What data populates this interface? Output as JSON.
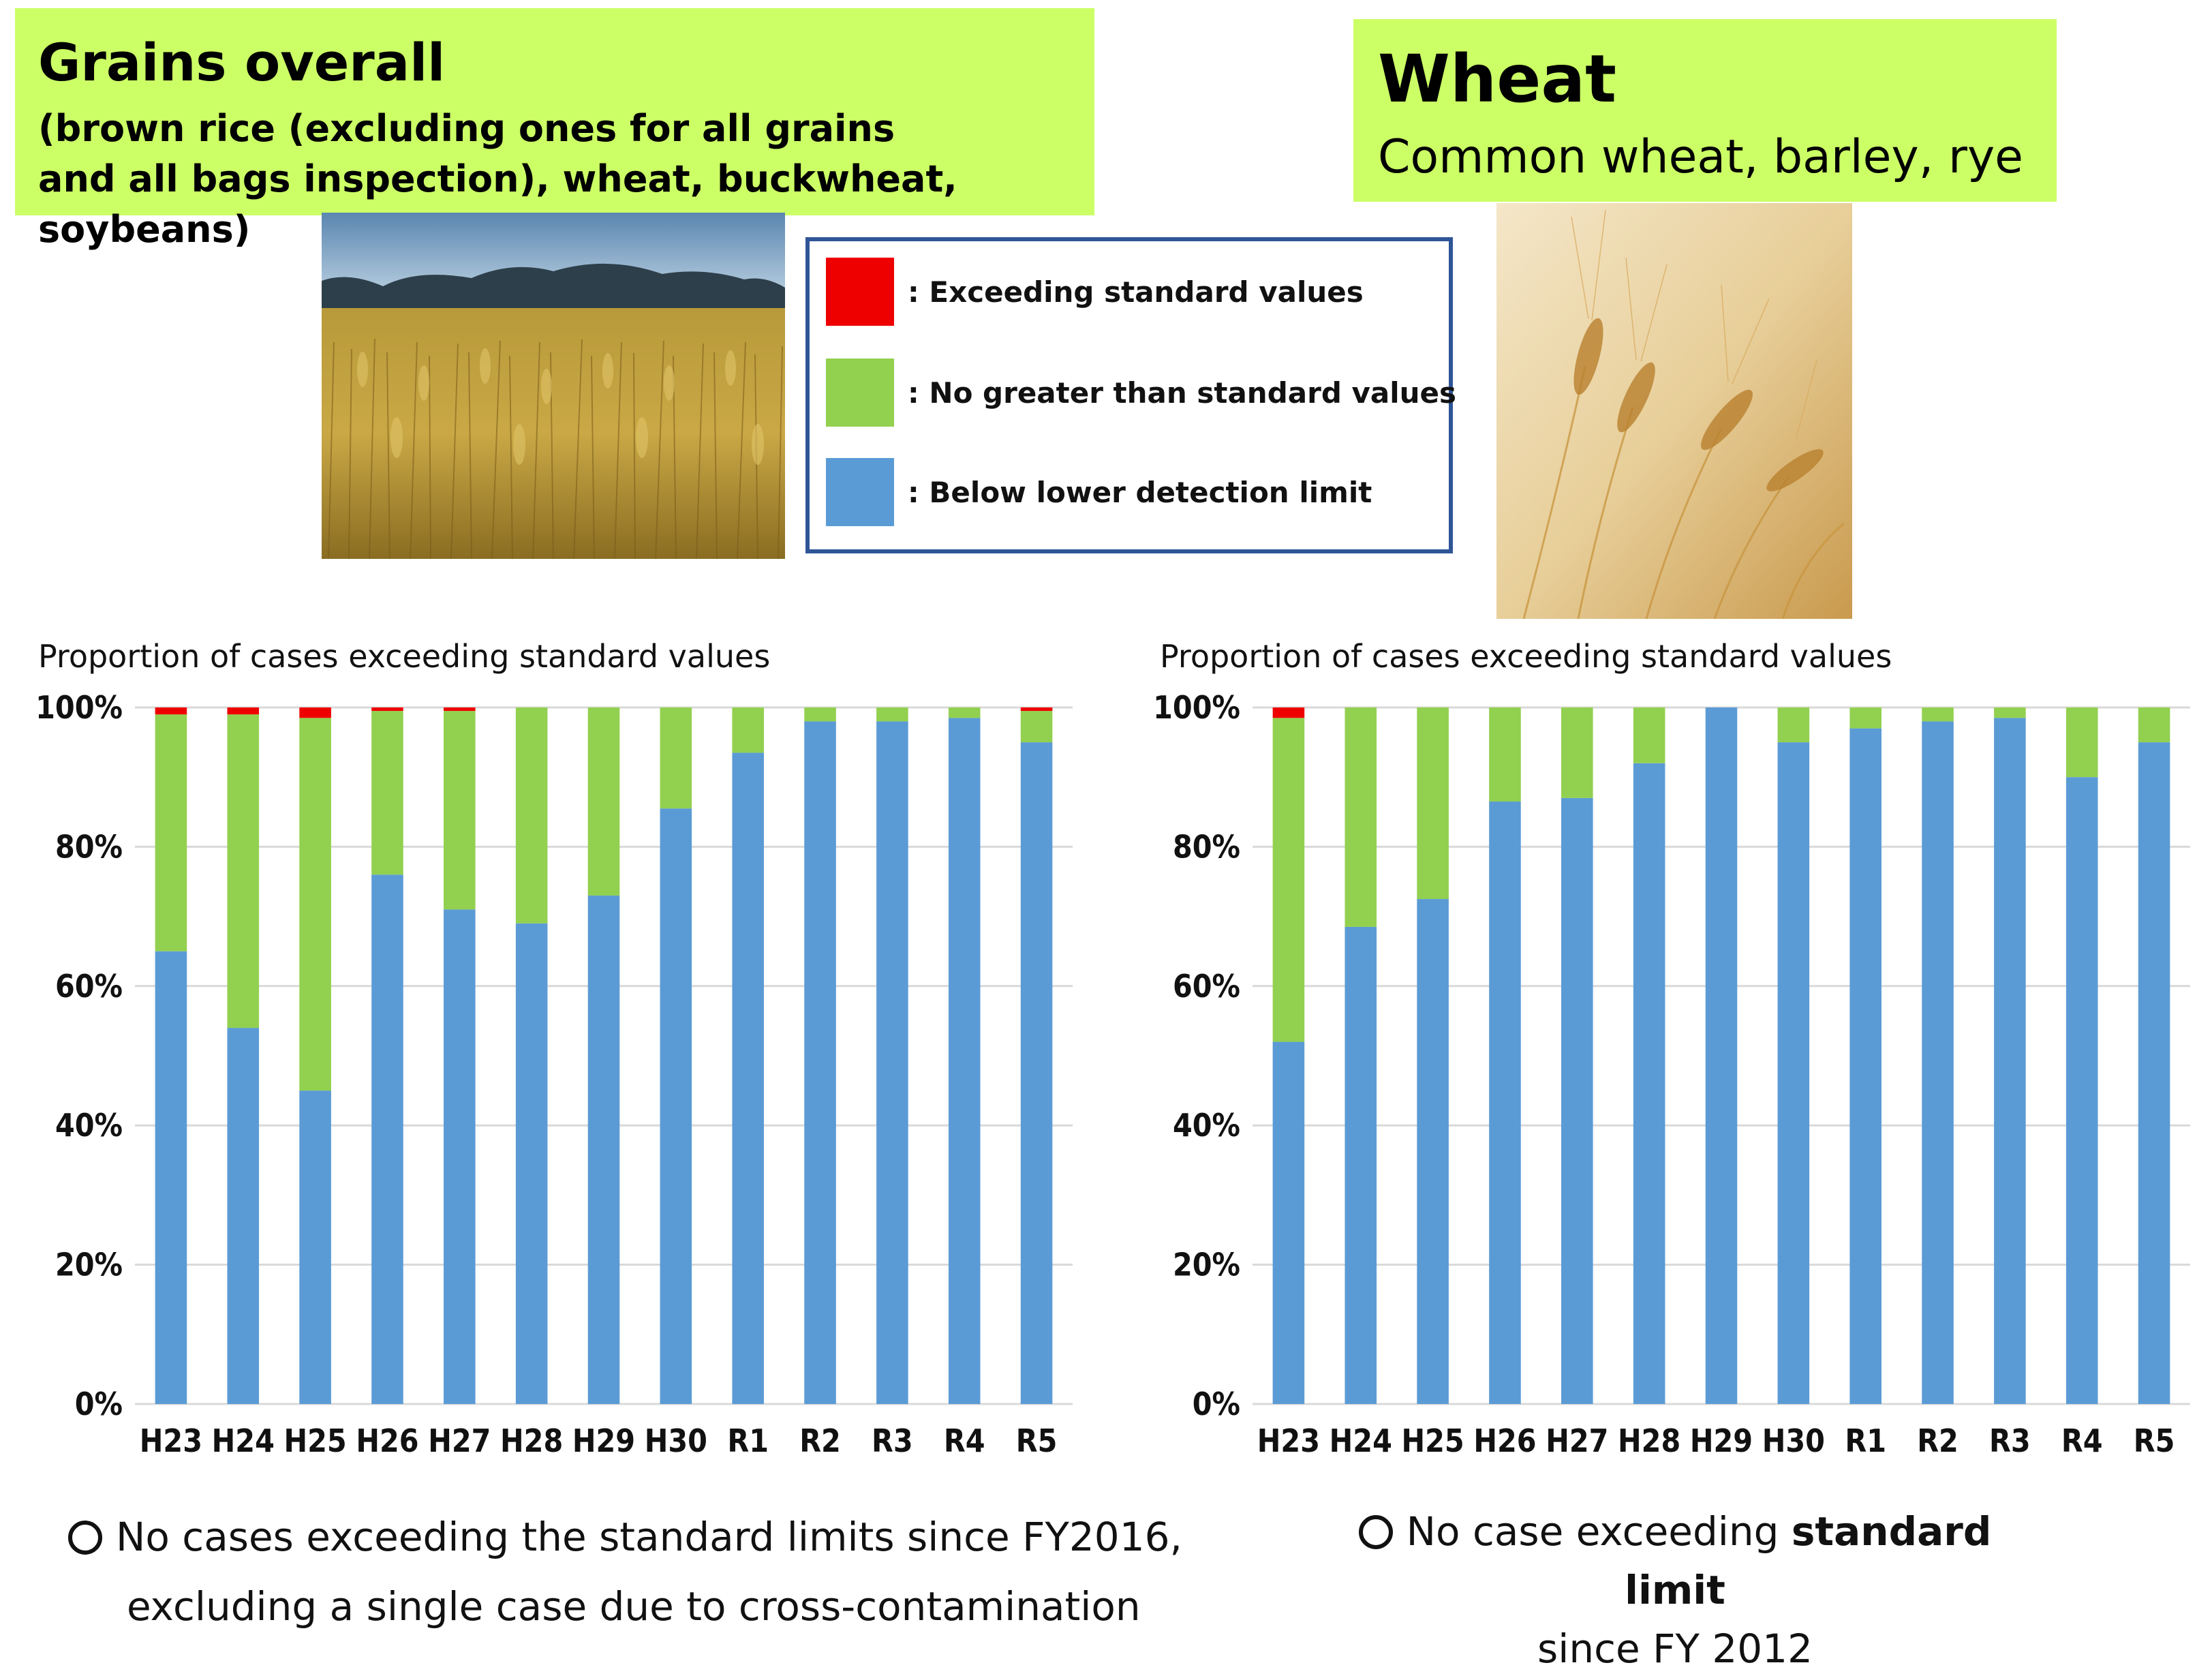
{
  "left_panel": {
    "title": "Grains overall",
    "subtitle_line1": "(brown rice (excluding ones for all grains",
    "subtitle_line2": "and all bags inspection), wheat, buckwheat, soybeans)",
    "note_line1": "No cases exceeding the standard limits since FY2016,",
    "note_line2": "excluding a single case due to cross-contamination"
  },
  "right_panel": {
    "title": "Wheat",
    "subtitle": "Common wheat, barley, rye",
    "note_prefix": "No case exceeding ",
    "note_bold": "standard limit",
    "note_line2": "since FY 2012"
  },
  "legend": {
    "items": [
      {
        "label": ": Exceeding standard values",
        "color": "#ee0000"
      },
      {
        "label": ": No greater than standard values",
        "color": "#92d050"
      },
      {
        "label": ": Below lower detection limit",
        "color": "#5b9bd5"
      }
    ]
  },
  "colors": {
    "exceeding": "#ee0000",
    "no_greater": "#92d050",
    "below": "#5b9bd5",
    "grid": "#d9d9d9"
  },
  "chart_data": [
    {
      "type": "bar",
      "stacked": true,
      "title": "Proportion of cases exceeding standard values",
      "categories": [
        "H23",
        "H24",
        "H25",
        "H26",
        "H27",
        "H28",
        "H29",
        "H30",
        "R1",
        "R2",
        "R3",
        "R4",
        "R5"
      ],
      "ylim": [
        0,
        100
      ],
      "yticks": [
        "0%",
        "20%",
        "40%",
        "60%",
        "80%",
        "100%"
      ],
      "series": [
        {
          "name": "Below lower detection limit",
          "values": [
            65,
            54,
            45,
            76,
            71,
            69,
            73,
            85.5,
            93.5,
            98,
            98,
            98.5,
            95
          ]
        },
        {
          "name": "No greater than standard values",
          "values": [
            34,
            45,
            53.5,
            23.5,
            28.5,
            31,
            27,
            14.5,
            6.5,
            2,
            2,
            1.5,
            4.5
          ]
        },
        {
          "name": "Exceeding standard values",
          "values": [
            1,
            1,
            1.5,
            0.5,
            0.5,
            0,
            0,
            0,
            0,
            0,
            0,
            0,
            0.5
          ]
        }
      ]
    },
    {
      "type": "bar",
      "stacked": true,
      "title": "Proportion of cases exceeding standard values",
      "categories": [
        "H23",
        "H24",
        "H25",
        "H26",
        "H27",
        "H28",
        "H29",
        "H30",
        "R1",
        "R2",
        "R3",
        "R4",
        "R5"
      ],
      "ylim": [
        0,
        100
      ],
      "yticks": [
        "0%",
        "20%",
        "40%",
        "60%",
        "80%",
        "100%"
      ],
      "series": [
        {
          "name": "Below lower detection limit",
          "values": [
            52,
            68.5,
            72.5,
            86.5,
            87,
            92,
            100,
            95,
            97,
            98,
            98.5,
            90,
            95
          ]
        },
        {
          "name": "No greater than standard values",
          "values": [
            46.5,
            31.5,
            27.5,
            13.5,
            13,
            8,
            0,
            5,
            3,
            2,
            1.5,
            10,
            5
          ]
        },
        {
          "name": "Exceeding standard values",
          "values": [
            1.5,
            0,
            0,
            0,
            0,
            0,
            0,
            0,
            0,
            0,
            0,
            0,
            0
          ]
        }
      ]
    }
  ]
}
